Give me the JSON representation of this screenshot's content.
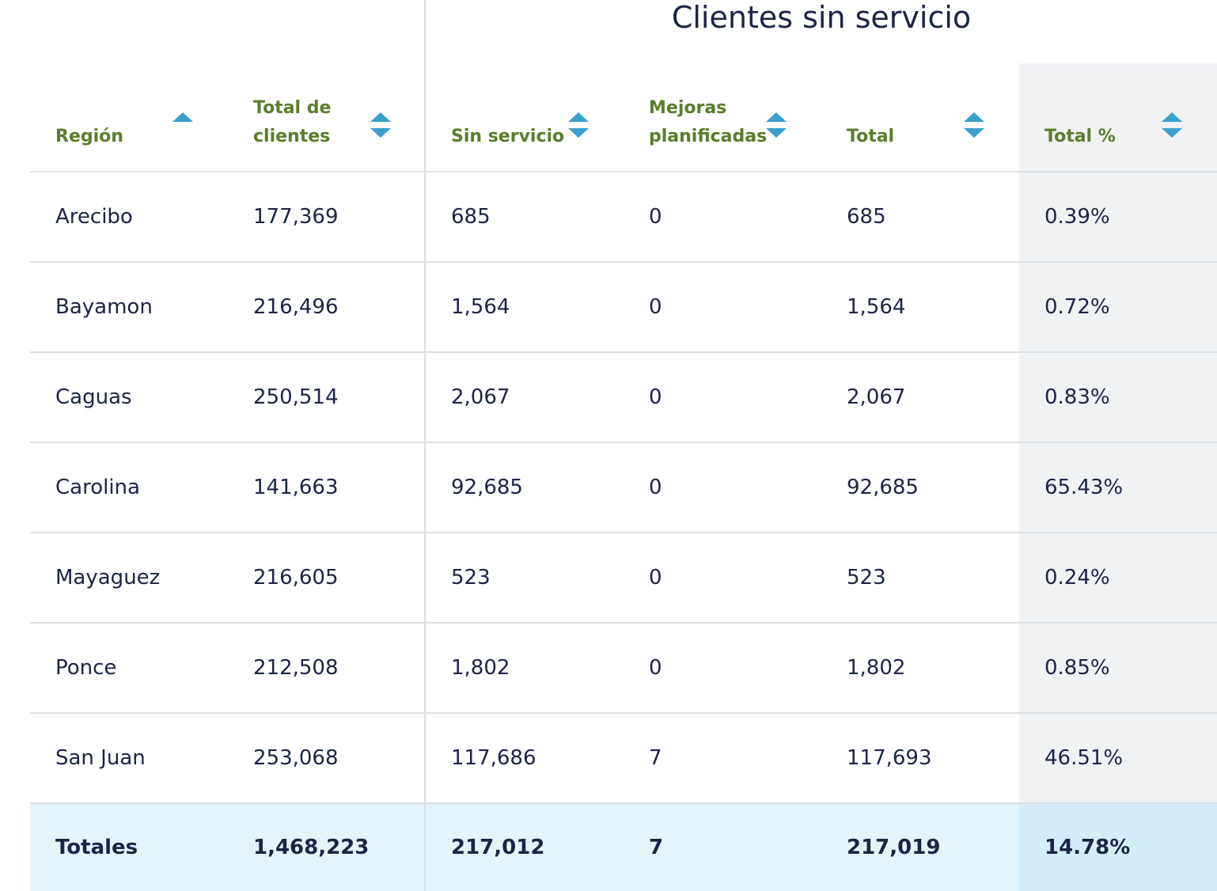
{
  "group_header": "Clientes sin servicio",
  "colors": {
    "header_text": "#5a7d2c",
    "sort_icon": "#3aa0cc",
    "body_text": "#1c2446",
    "totals_background": "#e4f4fb"
  },
  "columns": [
    {
      "label": "Región",
      "sort_icon": "sort-ascending-icon"
    },
    {
      "label": "Total de clientes",
      "sort_icon": "sort-both-icon"
    },
    {
      "label": "Sin servicio",
      "sort_icon": "sort-both-icon"
    },
    {
      "label": "Mejoras planificadas",
      "sort_icon": "sort-both-icon"
    },
    {
      "label": "Total",
      "sort_icon": "sort-both-icon"
    },
    {
      "label": "Total %",
      "sort_icon": "sort-both-icon"
    }
  ],
  "rows": [
    [
      "Arecibo",
      "177,369",
      "685",
      "0",
      "685",
      "0.39%"
    ],
    [
      "Bayamon",
      "216,496",
      "1,564",
      "0",
      "1,564",
      "0.72%"
    ],
    [
      "Caguas",
      "250,514",
      "2,067",
      "0",
      "2,067",
      "0.83%"
    ],
    [
      "Carolina",
      "141,663",
      "92,685",
      "0",
      "92,685",
      "65.43%"
    ],
    [
      "Mayaguez",
      "216,605",
      "523",
      "0",
      "523",
      "0.24%"
    ],
    [
      "Ponce",
      "212,508",
      "1,802",
      "0",
      "1,802",
      "0.85%"
    ],
    [
      "San Juan",
      "253,068",
      "117,686",
      "7",
      "117,693",
      "46.51%"
    ]
  ],
  "totals": [
    "Totales",
    "1,468,223",
    "217,012",
    "7",
    "217,019",
    "14.78%"
  ]
}
